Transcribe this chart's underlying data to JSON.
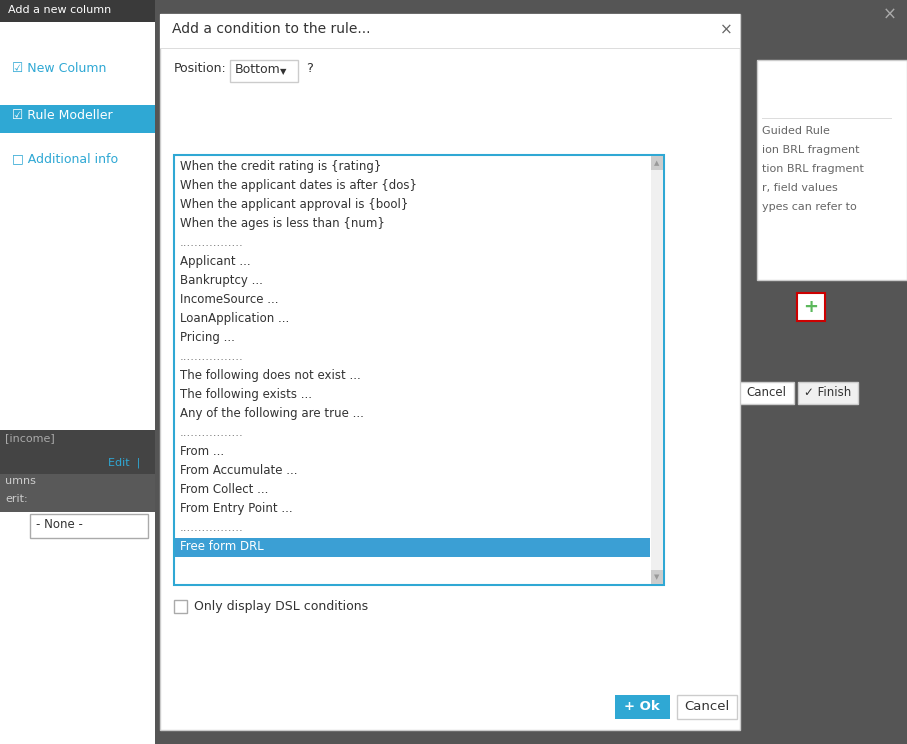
{
  "bg_dark": "#555555",
  "bg_white": "#ffffff",
  "blue_btn": "#2fa8d4",
  "blue_text": "#2fa8d4",
  "dialog_border": "#cccccc",
  "list_border": "#2fa8d4",
  "selected_row_color": "#3b9fd4",
  "text_dark": "#333333",
  "text_gray": "#666666",
  "text_mid": "#888888",
  "red_border": "#cc0000",
  "green_plus": "#5cb85c",
  "scrollbar_bg": "#f0f0f0",
  "scrollbar_thumb": "#cccccc",
  "separator_color": "#dddddd",
  "header_dark": "#3a3a3a",
  "panel_gray": "#595959",
  "main_dialog_title": "Add a condition to the rule...",
  "side_panel_title": "Add a new column",
  "position_label": "Position:",
  "position_value": "Bottom",
  "list_items": [
    "When the credit rating is {rating}",
    "When the applicant dates is after {dos}",
    "When the applicant approval is {bool}",
    "When the ages is less than {num}",
    ".................",
    "Applicant ...",
    "Bankruptcy ...",
    "IncomeSource ...",
    "LoanApplication ...",
    "Pricing ...",
    ".................",
    "The following does not exist ...",
    "The following exists ...",
    "Any of the following are true ...",
    ".................",
    "From ...",
    "From Accumulate ...",
    "From Collect ...",
    "From Entry Point ...",
    ".................",
    "Free form DRL"
  ],
  "selected_item": "Free form DRL",
  "checkbox_label": "Only display DSL conditions",
  "ok_btn_text": "+ Ok",
  "cancel_btn_text": "Cancel",
  "right_panel_text": [
    "Guided Rule",
    "ion BRL fragment",
    "tion BRL fragment",
    "r, field values",
    "ypes can refer to"
  ],
  "finish_btn": "✓ Finish",
  "cancel_side_btn": "Cancel"
}
